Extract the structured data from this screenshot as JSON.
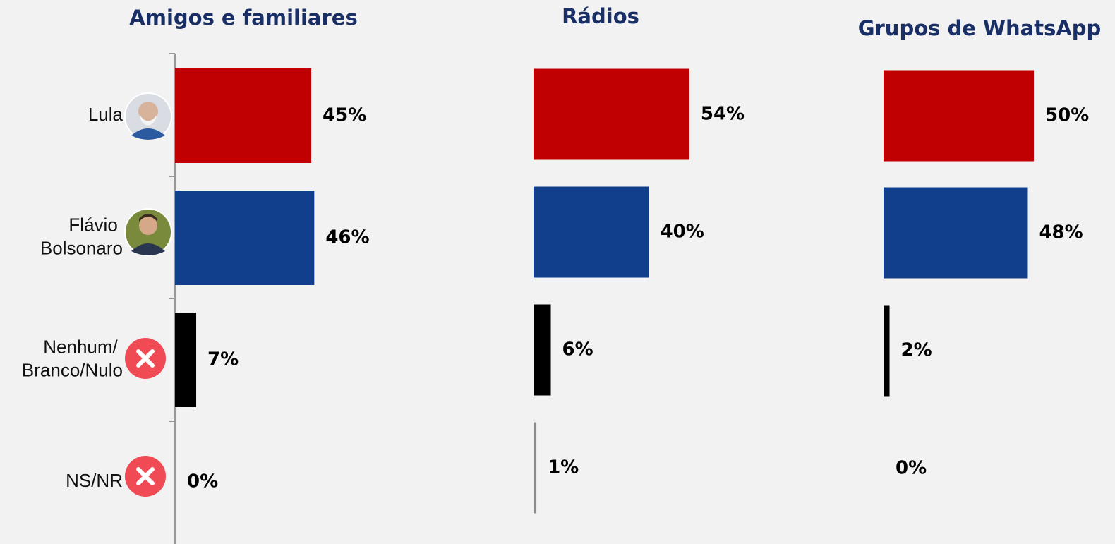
{
  "chart_data": [
    {
      "type": "bar",
      "title": "Amigos e familiares",
      "categories": [
        "Lula",
        "Flávio Bolsonaro",
        "Nenhum/ Branco/Nulo",
        "NS/NR"
      ],
      "values": [
        45,
        46,
        7,
        0
      ],
      "value_labels": [
        "45%",
        "46%",
        "7%",
        "0%"
      ],
      "colors": [
        "#c00000",
        "#123f8c",
        "#000000",
        "#8c8c8c"
      ]
    },
    {
      "type": "bar",
      "title": "Rádios",
      "values": [
        54,
        40,
        6,
        1
      ],
      "value_labels": [
        "54%",
        "40%",
        "6%",
        "1%"
      ],
      "colors": [
        "#c00000",
        "#123f8c",
        "#000000",
        "#8c8c8c"
      ]
    },
    {
      "type": "bar",
      "title": "Grupos de WhatsApp",
      "values": [
        50,
        48,
        2,
        0
      ],
      "value_labels": [
        "50%",
        "48%",
        "2%",
        "0%"
      ],
      "colors": [
        "#c00000",
        "#123f8c",
        "#000000",
        "#8c8c8c"
      ]
    }
  ]
}
